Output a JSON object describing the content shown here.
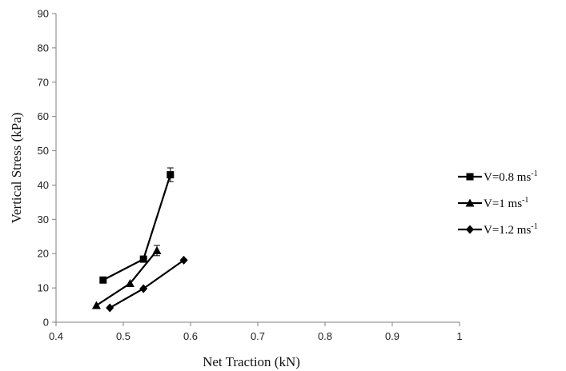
{
  "chart_data": {
    "type": "scatter",
    "title": "",
    "xlabel": "Net Traction (kN)",
    "ylabel": "Vertical Stress (kPa)",
    "xlim": [
      0.4,
      1
    ],
    "ylim": [
      0,
      90
    ],
    "xticks": [
      "0.4",
      "0.5",
      "0.6",
      "0.7",
      "0.8",
      "0.9",
      "1"
    ],
    "yticks": [
      "0",
      "10",
      "20",
      "30",
      "40",
      "50",
      "60",
      "70",
      "80",
      "90"
    ],
    "grid": false,
    "legend_position": "right",
    "series": [
      {
        "name": "V=0.8 ms",
        "name_sup": "-1",
        "marker": "square",
        "x": [
          0.47,
          0.53,
          0.57
        ],
        "y": [
          12.3,
          18.4,
          43.0
        ],
        "error": [
          0,
          0,
          2
        ]
      },
      {
        "name": "V=1 ms",
        "name_sup": "-1",
        "marker": "triangle",
        "x": [
          0.46,
          0.51,
          0.55
        ],
        "y": [
          4.9,
          11.3,
          20.9
        ],
        "error": [
          0,
          0,
          1.5
        ]
      },
      {
        "name": "V=1.2 ms",
        "name_sup": "-1",
        "marker": "diamond",
        "x": [
          0.48,
          0.53,
          0.59
        ],
        "y": [
          4.2,
          9.8,
          18.1
        ],
        "error": [
          0,
          0,
          0
        ]
      }
    ]
  }
}
